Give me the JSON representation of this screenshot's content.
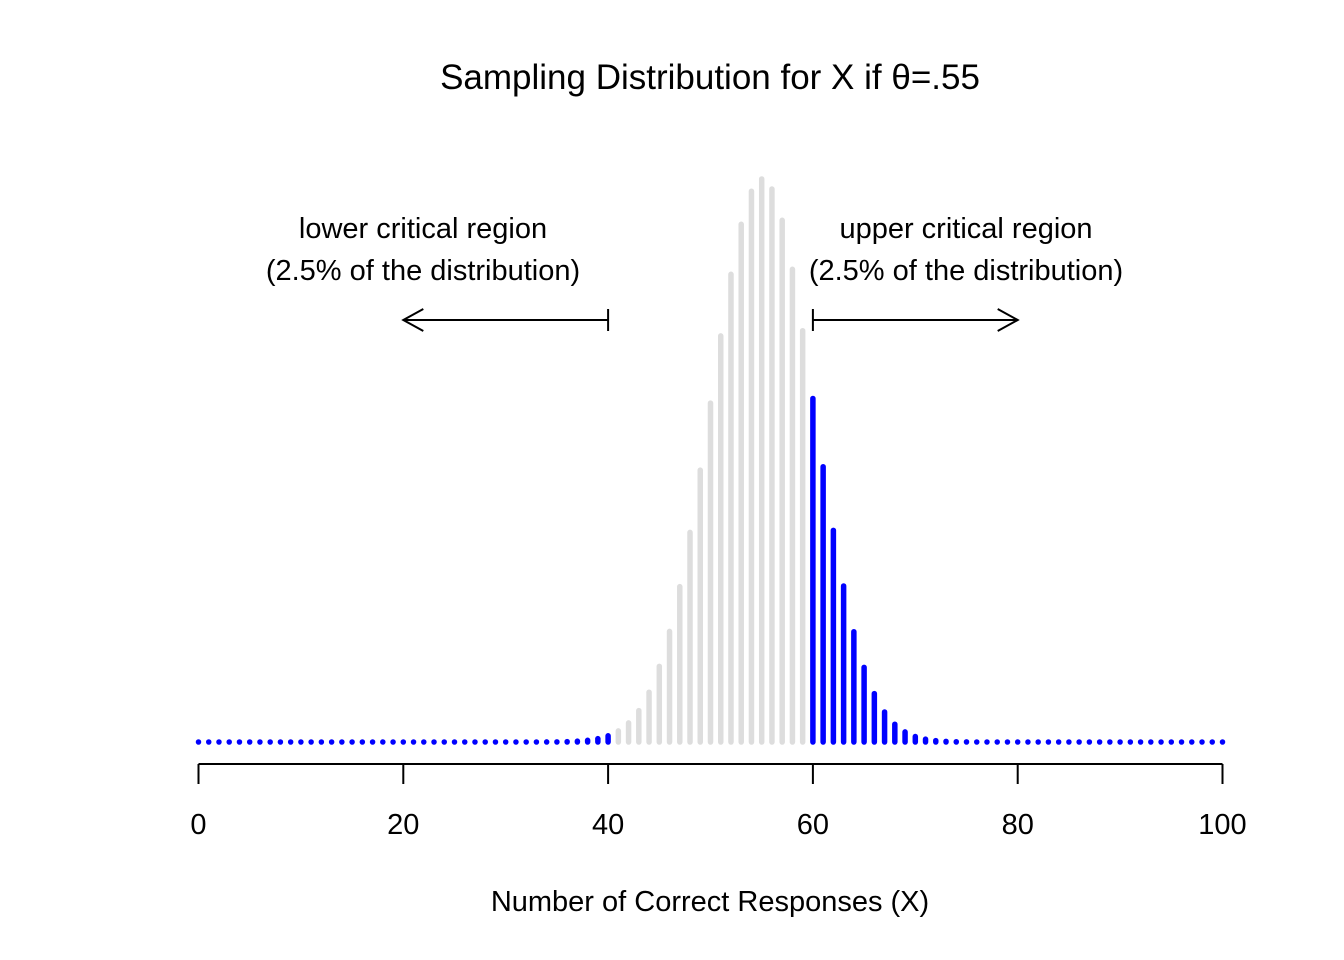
{
  "chart_data": {
    "type": "bar",
    "title": "Sampling Distribution for X if θ=.55",
    "xlabel": "Number of Correct Responses (X)",
    "ylabel": "",
    "xlim": [
      0,
      100
    ],
    "x_ticks": [
      "0",
      "20",
      "40",
      "60",
      "80",
      "100"
    ],
    "y_axis_shown": false,
    "grid": false,
    "distribution": {
      "family": "binomial",
      "n": 100,
      "theta": 0.55
    },
    "colors": {
      "critical_region": "#0000FF",
      "non_critical": "#DDDDDD",
      "axis": "#000000"
    },
    "critical_regions": {
      "lower_max_x": 40,
      "upper_min_x": 60
    },
    "annotations": [
      {
        "id": "lower",
        "lines": [
          "lower critical region",
          "(2.5% of the distribution)"
        ],
        "arrow_from": 40,
        "arrow_to": 20,
        "direction": "left"
      },
      {
        "id": "upper",
        "lines": [
          "upper critical region",
          "(2.5% of the distribution)"
        ],
        "arrow_from": 60,
        "arrow_to": 80,
        "direction": "right"
      }
    ]
  }
}
